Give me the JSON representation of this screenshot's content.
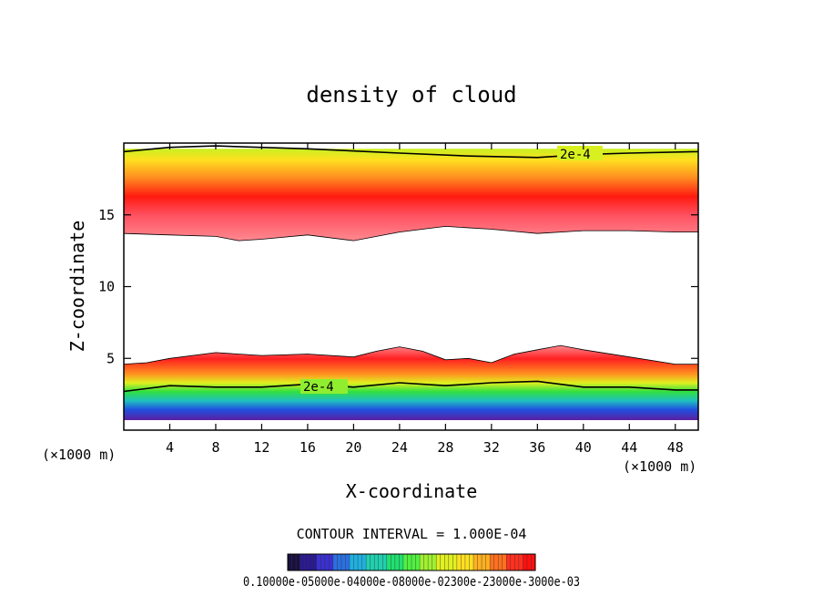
{
  "chart_data": {
    "type": "heatmap",
    "title": "density of cloud",
    "xlabel": "X-coordinate",
    "ylabel": "Z-coordinate",
    "x_unit": "(×1000 m)",
    "z_unit": "(×1000 m)",
    "xlim": [
      0,
      50
    ],
    "ylim": [
      0,
      20
    ],
    "x_ticks": [
      4,
      8,
      12,
      16,
      20,
      24,
      28,
      32,
      36,
      40,
      44,
      48
    ],
    "y_ticks": [
      5,
      10,
      15
    ],
    "contour_interval_text": "CONTOUR INTERVAL = 1.000E-04",
    "contour_label_upper": "2e-4",
    "contour_label_lower": "2e-4",
    "colorbar_labels_text": "0.10000e-05000e-04000e-08000e-02300e-23000e-3000e-03",
    "colorbar_colors": [
      "#1a1040",
      "#2a1a90",
      "#3a30d0",
      "#2a70e0",
      "#20b0e0",
      "#20d0b0",
      "#20e070",
      "#50f040",
      "#a0f030",
      "#e0f020",
      "#ffe020",
      "#ffb020",
      "#ff7020",
      "#ff3020",
      "#ff1010"
    ],
    "upper_layer": {
      "top_z": 19.6,
      "base_profile_x": [
        0,
        4,
        8,
        10,
        12,
        16,
        20,
        24,
        28,
        32,
        36,
        40,
        44,
        48,
        50
      ],
      "base_profile_z": [
        13.7,
        13.6,
        13.5,
        13.2,
        13.3,
        13.6,
        13.2,
        13.8,
        14.2,
        14.0,
        13.7,
        13.9,
        13.9,
        13.8,
        13.8
      ],
      "core_z": 15.7
    },
    "lower_layer": {
      "top_profile_x": [
        0,
        2,
        4,
        8,
        12,
        16,
        20,
        22,
        24,
        26,
        28,
        30,
        32,
        34,
        36,
        38,
        40,
        44,
        48,
        50
      ],
      "top_profile_z": [
        4.6,
        4.7,
        5.0,
        5.4,
        5.2,
        5.3,
        5.1,
        5.5,
        5.8,
        5.5,
        4.9,
        5.0,
        4.7,
        5.3,
        5.6,
        5.9,
        5.6,
        5.1,
        4.6,
        4.6
      ],
      "base_z": 0.7
    }
  }
}
